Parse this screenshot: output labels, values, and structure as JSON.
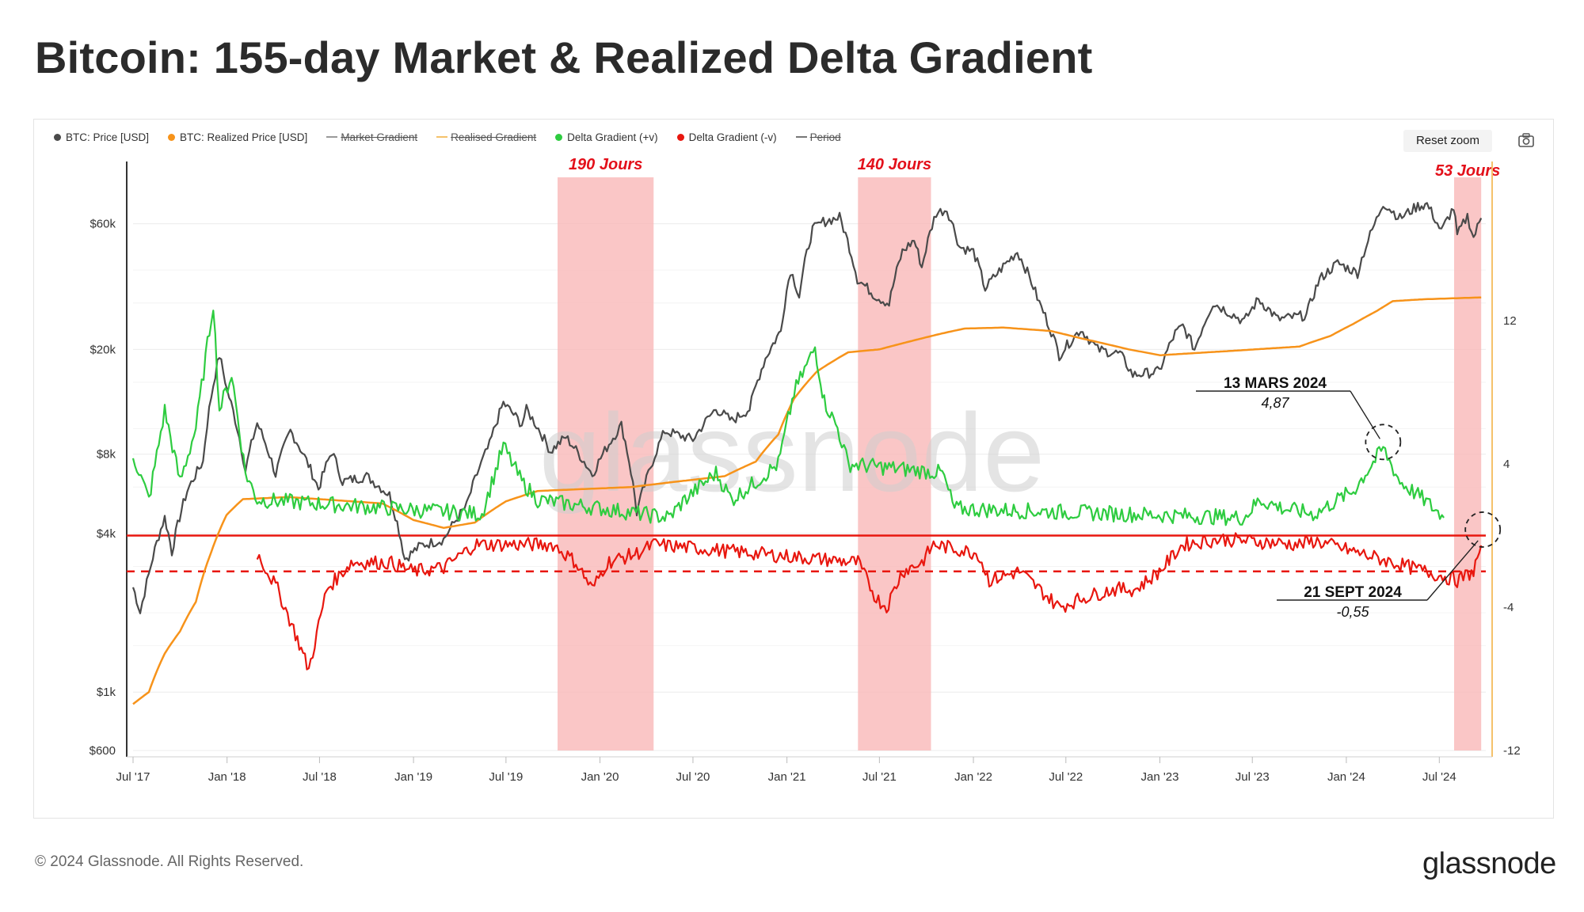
{
  "page": {
    "title": "Bitcoin: 155-day Market & Realized Delta Gradient",
    "footer": "© 2024 Glassnode. All Rights Reserved.",
    "brand": "glassnode",
    "watermark": "glassnode",
    "reset_zoom": "Reset zoom",
    "camera_icon": "camera-icon"
  },
  "legend": [
    {
      "label": "BTC: Price [USD]",
      "color": "#4a4a4a",
      "style": "dot",
      "enabled": true
    },
    {
      "label": "BTC: Realized Price [USD]",
      "color": "#f7931a",
      "style": "dot",
      "enabled": true
    },
    {
      "label": "Market Gradient",
      "color": "#9a9a9a",
      "style": "line",
      "enabled": false
    },
    {
      "label": "Realised Gradient",
      "color": "#f5c26b",
      "style": "line",
      "enabled": false
    },
    {
      "label": "Delta Gradient (+v)",
      "color": "#2ecc40",
      "style": "dot",
      "enabled": true
    },
    {
      "label": "Delta Gradient (-v)",
      "color": "#e8170f",
      "style": "dot",
      "enabled": true
    },
    {
      "label": "Period",
      "color": "#777777",
      "style": "line",
      "enabled": false
    }
  ],
  "chart_data": {
    "type": "line",
    "title": "Bitcoin: 155-day Market & Realized Delta Gradient",
    "x_ticks": [
      "Jul '17",
      "Jan '18",
      "Jul '18",
      "Jan '19",
      "Jul '19",
      "Jan '20",
      "Jul '20",
      "Jan '21",
      "Jul '21",
      "Jan '22",
      "Jul '22",
      "Jan '23",
      "Jul '23",
      "Jan '24",
      "Jul '24"
    ],
    "y_left_ticks": [
      "$600",
      "$1k",
      "$4k",
      "$8k",
      "$20k",
      "$60k"
    ],
    "y_left_values": [
      600,
      1000,
      4000,
      8000,
      20000,
      60000
    ],
    "y_left_scale": "log",
    "y_left_range": [
      600,
      90000
    ],
    "y_right_ticks": [
      "-12",
      "-4",
      "4",
      "12"
    ],
    "y_right_values": [
      -12,
      -4,
      4,
      12
    ],
    "y_right_range": [
      -12,
      20
    ],
    "x_range": [
      "2017-07-01",
      "2024-09-30"
    ],
    "grid": true,
    "legend_position": "top-left",
    "series": [
      {
        "name": "BTC: Price [USD]",
        "color": "#4a4a4a",
        "axis": "left",
        "points": [
          [
            "2017-07-01",
            2500
          ],
          [
            "2017-07-15",
            2000
          ],
          [
            "2017-08-01",
            2800
          ],
          [
            "2017-09-01",
            4600
          ],
          [
            "2017-09-15",
            3400
          ],
          [
            "2017-10-15",
            5800
          ],
          [
            "2017-11-15",
            7500
          ],
          [
            "2017-12-17",
            19000
          ],
          [
            "2018-01-01",
            14000
          ],
          [
            "2018-02-06",
            6900
          ],
          [
            "2018-03-01",
            10500
          ],
          [
            "2018-04-06",
            6700
          ],
          [
            "2018-05-05",
            9800
          ],
          [
            "2018-06-29",
            5900
          ],
          [
            "2018-07-25",
            8200
          ],
          [
            "2018-08-15",
            6300
          ],
          [
            "2018-10-01",
            6600
          ],
          [
            "2018-11-15",
            5600
          ],
          [
            "2018-12-15",
            3200
          ],
          [
            "2019-01-15",
            3600
          ],
          [
            "2019-03-01",
            3800
          ],
          [
            "2019-04-15",
            5100
          ],
          [
            "2019-05-30",
            8700
          ],
          [
            "2019-06-26",
            12500
          ],
          [
            "2019-08-01",
            10400
          ],
          [
            "2019-08-10",
            11800
          ],
          [
            "2019-09-26",
            8200
          ],
          [
            "2019-10-26",
            9300
          ],
          [
            "2019-12-17",
            6700
          ],
          [
            "2020-02-12",
            10300
          ],
          [
            "2020-03-13",
            4800
          ],
          [
            "2020-04-01",
            6400
          ],
          [
            "2020-05-07",
            9800
          ],
          [
            "2020-07-01",
            9100
          ],
          [
            "2020-08-15",
            11900
          ],
          [
            "2020-09-15",
            10700
          ],
          [
            "2020-10-20",
            11900
          ],
          [
            "2020-11-20",
            18500
          ],
          [
            "2020-12-20",
            23500
          ],
          [
            "2021-01-08",
            40000
          ],
          [
            "2021-01-25",
            32000
          ],
          [
            "2021-02-20",
            57000
          ],
          [
            "2021-03-13",
            61000
          ],
          [
            "2021-04-14",
            63500
          ],
          [
            "2021-05-19",
            37000
          ],
          [
            "2021-06-22",
            32000
          ],
          [
            "2021-07-20",
            29800
          ],
          [
            "2021-08-15",
            47000
          ],
          [
            "2021-09-07",
            52000
          ],
          [
            "2021-09-22",
            41000
          ],
          [
            "2021-10-20",
            66000
          ],
          [
            "2021-11-10",
            68000
          ],
          [
            "2021-12-05",
            49000
          ],
          [
            "2022-01-01",
            47000
          ],
          [
            "2022-01-24",
            34000
          ],
          [
            "2022-03-28",
            47000
          ],
          [
            "2022-05-10",
            30000
          ],
          [
            "2022-06-18",
            19000
          ],
          [
            "2022-07-30",
            23800
          ],
          [
            "2022-09-01",
            20000
          ],
          [
            "2022-10-15",
            19200
          ],
          [
            "2022-11-09",
            16000
          ],
          [
            "2022-12-31",
            16500
          ],
          [
            "2023-01-31",
            23000
          ],
          [
            "2023-02-15",
            24500
          ],
          [
            "2023-03-10",
            20000
          ],
          [
            "2023-04-15",
            30000
          ],
          [
            "2023-06-15",
            25500
          ],
          [
            "2023-07-13",
            31000
          ],
          [
            "2023-08-20",
            26000
          ],
          [
            "2023-10-15",
            27000
          ],
          [
            "2023-11-10",
            37000
          ],
          [
            "2023-12-15",
            42500
          ],
          [
            "2024-01-23",
            39000
          ],
          [
            "2024-02-29",
            62000
          ],
          [
            "2024-03-13",
            72000
          ],
          [
            "2024-04-15",
            63000
          ],
          [
            "2024-05-20",
            70000
          ],
          [
            "2024-06-07",
            71000
          ],
          [
            "2024-07-05",
            56000
          ],
          [
            "2024-07-29",
            69000
          ],
          [
            "2024-08-05",
            54000
          ],
          [
            "2024-08-25",
            64000
          ],
          [
            "2024-09-06",
            53000
          ],
          [
            "2024-09-21",
            63000
          ]
        ]
      },
      {
        "name": "BTC: Realized Price [USD]",
        "color": "#f7931a",
        "axis": "left",
        "points": [
          [
            "2017-07-01",
            900
          ],
          [
            "2017-08-01",
            1000
          ],
          [
            "2017-09-01",
            1400
          ],
          [
            "2017-10-01",
            1700
          ],
          [
            "2017-11-01",
            2200
          ],
          [
            "2017-12-01",
            3400
          ],
          [
            "2017-12-31",
            4700
          ],
          [
            "2018-02-01",
            5400
          ],
          [
            "2018-05-01",
            5500
          ],
          [
            "2018-09-01",
            5300
          ],
          [
            "2018-11-01",
            5200
          ],
          [
            "2019-01-01",
            4500
          ],
          [
            "2019-03-01",
            4200
          ],
          [
            "2019-05-01",
            4400
          ],
          [
            "2019-07-01",
            5300
          ],
          [
            "2019-09-01",
            5800
          ],
          [
            "2019-12-01",
            5900
          ],
          [
            "2020-03-01",
            6000
          ],
          [
            "2020-06-01",
            6300
          ],
          [
            "2020-09-01",
            6600
          ],
          [
            "2020-11-01",
            7500
          ],
          [
            "2020-12-15",
            9500
          ],
          [
            "2021-01-15",
            13000
          ],
          [
            "2021-03-01",
            16500
          ],
          [
            "2021-05-01",
            19500
          ],
          [
            "2021-07-01",
            20000
          ],
          [
            "2021-09-01",
            21500
          ],
          [
            "2021-11-01",
            23000
          ],
          [
            "2021-12-15",
            24000
          ],
          [
            "2022-03-01",
            24200
          ],
          [
            "2022-06-01",
            23500
          ],
          [
            "2022-08-01",
            22000
          ],
          [
            "2022-11-01",
            20000
          ],
          [
            "2023-01-01",
            19000
          ],
          [
            "2023-06-01",
            19800
          ],
          [
            "2023-10-01",
            20500
          ],
          [
            "2023-12-01",
            22500
          ],
          [
            "2024-01-15",
            25000
          ],
          [
            "2024-03-01",
            28000
          ],
          [
            "2024-04-01",
            30500
          ],
          [
            "2024-06-01",
            31000
          ],
          [
            "2024-09-21",
            31500
          ]
        ]
      },
      {
        "name": "Delta Gradient (+v)",
        "color": "#2ecc40",
        "axis": "right",
        "points": [
          [
            "2017-07-01",
            4.5
          ],
          [
            "2017-08-01",
            2.0
          ],
          [
            "2017-09-01",
            7.0
          ],
          [
            "2017-10-01",
            3.0
          ],
          [
            "2017-11-01",
            6.0
          ],
          [
            "2017-12-05",
            13.0
          ],
          [
            "2017-12-17",
            7.0
          ],
          [
            "2018-01-10",
            9.0
          ],
          [
            "2018-02-06",
            3.5
          ],
          [
            "2018-03-01",
            2.0
          ],
          [
            "2019-05-15",
            1.2
          ],
          [
            "2019-06-26",
            5.0
          ],
          [
            "2019-08-01",
            3.0
          ],
          [
            "2019-09-01",
            2.0
          ],
          [
            "2020-05-15",
            1.0
          ],
          [
            "2020-06-15",
            2.0
          ],
          [
            "2020-08-15",
            3.5
          ],
          [
            "2020-09-15",
            2.0
          ],
          [
            "2020-11-01",
            3.0
          ],
          [
            "2020-12-15",
            4.0
          ],
          [
            "2021-01-15",
            8.0
          ],
          [
            "2021-02-25",
            10.5
          ],
          [
            "2021-03-15",
            7.5
          ],
          [
            "2021-04-10",
            6.0
          ],
          [
            "2021-05-01",
            4.0
          ],
          [
            "2021-11-01",
            3.5
          ],
          [
            "2021-11-25",
            1.5
          ],
          [
            "2023-06-15",
            1.0
          ],
          [
            "2023-07-15",
            2.0
          ],
          [
            "2023-09-01",
            1.5
          ],
          [
            "2023-11-01",
            1.2
          ],
          [
            "2023-12-15",
            2.0
          ],
          [
            "2024-01-15",
            2.5
          ],
          [
            "2024-03-13",
            4.87
          ],
          [
            "2024-04-15",
            3.0
          ],
          [
            "2024-06-01",
            2.0
          ],
          [
            "2024-07-10",
            1.0
          ]
        ]
      },
      {
        "name": "Delta Gradient (-v)",
        "color": "#e8170f",
        "axis": "right",
        "points": [
          [
            "2018-03-01",
            -1.0
          ],
          [
            "2018-04-10",
            -3.0
          ],
          [
            "2018-05-15",
            -5.5
          ],
          [
            "2018-06-10",
            -7.5
          ],
          [
            "2018-07-15",
            -3.0
          ],
          [
            "2018-09-01",
            -1.5
          ],
          [
            "2018-11-15",
            -1.5
          ],
          [
            "2018-12-31",
            -2.0
          ],
          [
            "2019-03-01",
            -1.8
          ],
          [
            "2019-05-01",
            -0.5
          ],
          [
            "2019-10-01",
            -0.5
          ],
          [
            "2019-11-15",
            -1.5
          ],
          [
            "2019-12-17",
            -3.0
          ],
          [
            "2020-01-15",
            -1.5
          ],
          [
            "2020-03-13",
            -1.0
          ],
          [
            "2020-04-15",
            -0.5
          ],
          [
            "2021-05-20",
            -1.5
          ],
          [
            "2021-06-25",
            -3.5
          ],
          [
            "2021-07-15",
            -4.0
          ],
          [
            "2021-08-15",
            -2.0
          ],
          [
            "2021-09-22",
            -1.5
          ],
          [
            "2021-10-15",
            -0.5
          ],
          [
            "2022-01-10",
            -1.0
          ],
          [
            "2022-02-01",
            -2.5
          ],
          [
            "2022-04-01",
            -2.0
          ],
          [
            "2022-06-18",
            -4.0
          ],
          [
            "2022-08-01",
            -3.5
          ],
          [
            "2022-10-01",
            -3.0
          ],
          [
            "2022-11-15",
            -3.0
          ],
          [
            "2022-12-31",
            -2.0
          ],
          [
            "2023-02-15",
            -0.5
          ],
          [
            "2023-05-01",
            -0.2
          ],
          [
            "2023-10-01",
            -0.5
          ],
          [
            "2023-11-01",
            -0.3
          ],
          [
            "2024-08-05",
            -2.5
          ],
          [
            "2024-09-06",
            -2.0
          ],
          [
            "2024-09-21",
            -0.55
          ]
        ]
      }
    ],
    "reference_lines": [
      {
        "value": 0,
        "axis": "right",
        "color": "#e8170f",
        "style": "solid"
      },
      {
        "value": -2,
        "axis": "right",
        "color": "#e8170f",
        "style": "dashed"
      }
    ],
    "shaded_periods": [
      {
        "start": "2019-10-10",
        "end": "2020-04-15",
        "label": "190 Jours"
      },
      {
        "start": "2021-05-20",
        "end": "2021-10-10",
        "label": "140 Jours"
      },
      {
        "start": "2024-07-30",
        "end": "2024-09-21",
        "label": "53 Jours"
      }
    ],
    "annotations": [
      {
        "title": "13 MARS 2024",
        "value": "4,87",
        "date": "2024-03-13",
        "y": 4.87
      },
      {
        "title": "21 SEPT 2024",
        "value": "-0,55",
        "date": "2024-09-21",
        "y": -0.55
      }
    ]
  }
}
